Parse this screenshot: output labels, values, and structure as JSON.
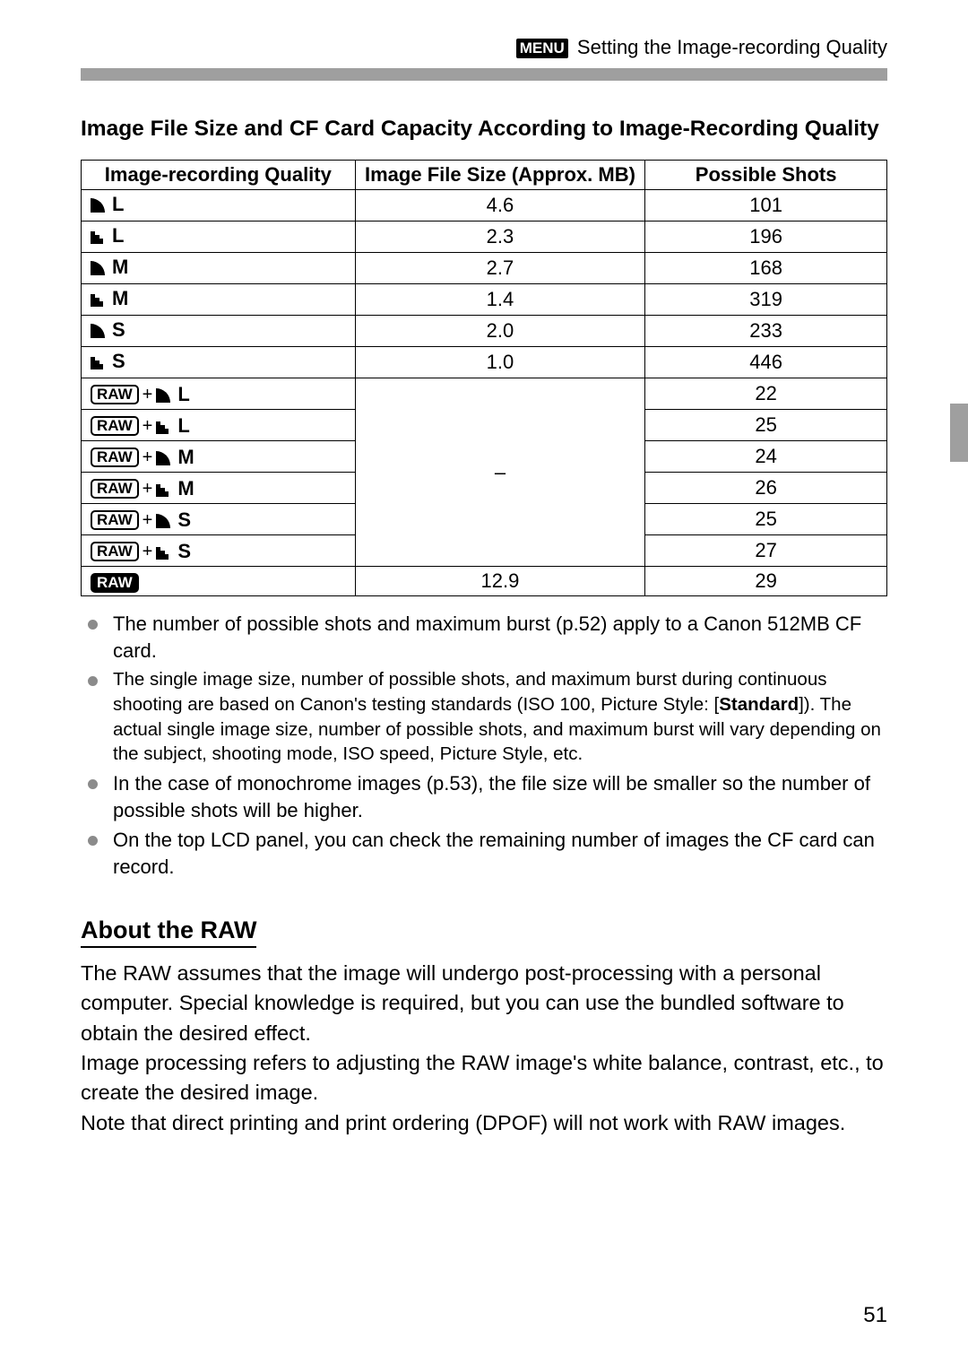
{
  "header": {
    "menu_label": "MENU",
    "title": "Setting the Image-recording Quality"
  },
  "section_title": "Image File Size and CF Card Capacity According to Image-Recording Quality",
  "table": {
    "columns": [
      "Image-recording Quality",
      "Image File Size (Approx. MB)",
      "Possible Shots"
    ],
    "rows": [
      {
        "raw": false,
        "jpeg": {
          "fine": true,
          "letter": "L"
        },
        "size": "4.6",
        "shots": "101"
      },
      {
        "raw": false,
        "jpeg": {
          "fine": false,
          "letter": "L"
        },
        "size": "2.3",
        "shots": "196"
      },
      {
        "raw": false,
        "jpeg": {
          "fine": true,
          "letter": "M"
        },
        "size": "2.7",
        "shots": "168"
      },
      {
        "raw": false,
        "jpeg": {
          "fine": false,
          "letter": "M"
        },
        "size": "1.4",
        "shots": "319"
      },
      {
        "raw": false,
        "jpeg": {
          "fine": true,
          "letter": "S"
        },
        "size": "2.0",
        "shots": "233"
      },
      {
        "raw": false,
        "jpeg": {
          "fine": false,
          "letter": "S"
        },
        "size": "1.0",
        "shots": "446"
      },
      {
        "raw": true,
        "jpeg": {
          "fine": true,
          "letter": "L"
        },
        "size": null,
        "shots": "22"
      },
      {
        "raw": true,
        "jpeg": {
          "fine": false,
          "letter": "L"
        },
        "size": null,
        "shots": "25"
      },
      {
        "raw": true,
        "jpeg": {
          "fine": true,
          "letter": "M"
        },
        "size": null,
        "shots": "24"
      },
      {
        "raw": true,
        "jpeg": {
          "fine": false,
          "letter": "M"
        },
        "size": null,
        "shots": "26"
      },
      {
        "raw": true,
        "jpeg": {
          "fine": true,
          "letter": "S"
        },
        "size": null,
        "shots": "25"
      },
      {
        "raw": true,
        "jpeg": {
          "fine": false,
          "letter": "S"
        },
        "size": null,
        "shots": "27"
      },
      {
        "raw": true,
        "raw_only": true,
        "size": "12.9",
        "shots": "29"
      }
    ],
    "merged_size_placeholder": "–",
    "raw_label": "RAW",
    "plus": "+"
  },
  "notes": [
    {
      "text": "The number of possible shots and maximum burst (p.52) apply to a Canon 512MB CF card.",
      "small": false
    },
    {
      "html": "The single image size, number of possible shots, and maximum burst during continuous shooting are based on Canon's testing standards (ISO 100, Picture Style: [<b>Standard</b>]). The actual single image size, number of possible shots,  and maximum burst will vary depending on the subject, shooting mode, ISO speed, Picture Style, etc.",
      "small": true
    },
    {
      "text": "In the case of monochrome images (p.53), the file size will be smaller so the number of possible shots will be higher.",
      "small": false
    },
    {
      "text": "On the top LCD panel, you can check the remaining number of images the CF card can record.",
      "small": false
    }
  ],
  "about": {
    "heading": "About the RAW",
    "body": "The RAW assumes that the image will undergo post-processing with a personal computer. Special knowledge is required, but you can use the bundled software to obtain the desired effect.\nImage processing refers to adjusting the RAW image's white balance, contrast, etc., to create the desired image.\nNote that direct printing and print ordering (DPOF) will not work with RAW images."
  },
  "page_number": "51",
  "colors": {
    "page_bg": "#ffffff",
    "text": "#000000",
    "bar": "#9f9f9f",
    "bullet": "#8b8b8b"
  },
  "fonts": {
    "body_size_pt": 17,
    "table_size_pt": 16,
    "heading_size_pt": 20
  }
}
